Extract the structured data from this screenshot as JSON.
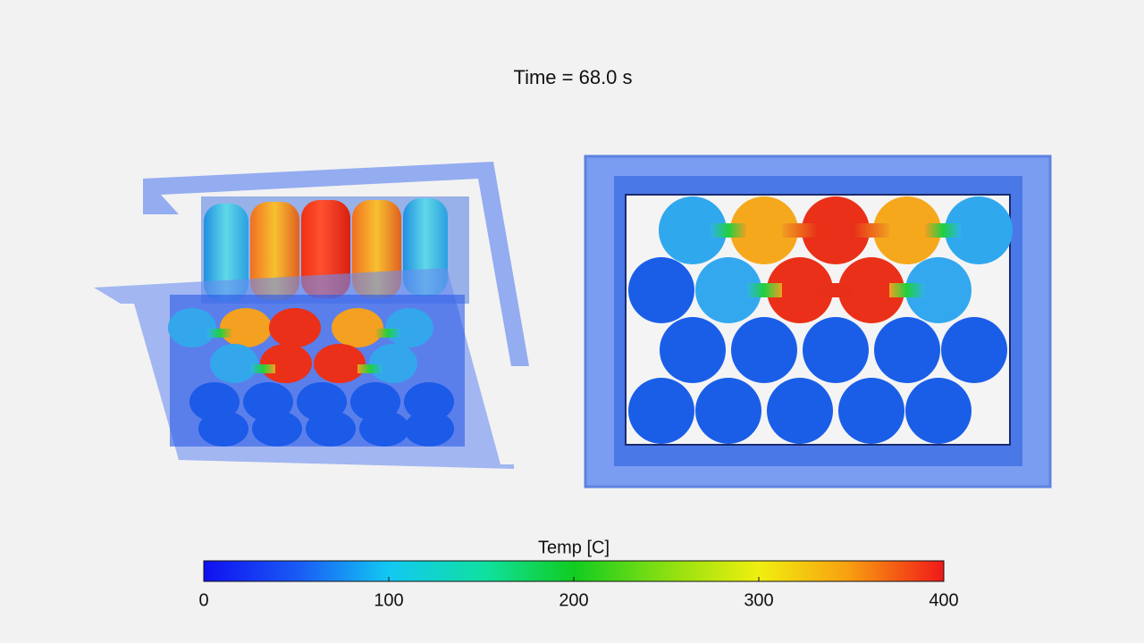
{
  "title": "Time = 68.0 s",
  "colorbar": {
    "label": "Temp [C]",
    "range": [
      0,
      400
    ],
    "ticks": [
      0,
      100,
      200,
      300,
      400
    ]
  }
}
